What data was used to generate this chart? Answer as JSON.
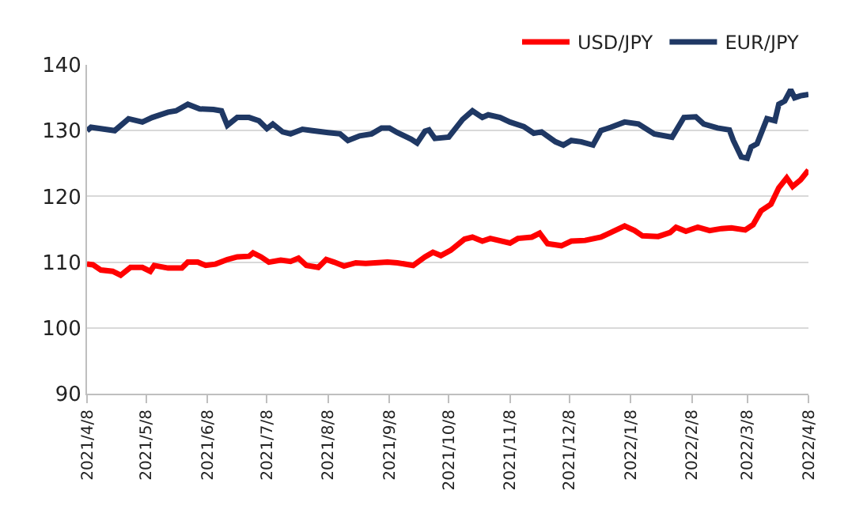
{
  "chart_data": {
    "type": "line",
    "ylim": [
      90,
      140
    ],
    "yticks": [
      90,
      100,
      110,
      120,
      130,
      140
    ],
    "xlim": [
      "2021-04-08",
      "2022-04-08"
    ],
    "xticks": [
      {
        "value": "2021-04-08",
        "label": "2021/4/8"
      },
      {
        "value": "2021-05-08",
        "label": "2021/5/8"
      },
      {
        "value": "2021-06-08",
        "label": "2021/6/8"
      },
      {
        "value": "2021-07-08",
        "label": "2021/7/8"
      },
      {
        "value": "2021-08-08",
        "label": "2021/8/8"
      },
      {
        "value": "2021-09-08",
        "label": "2021/9/8"
      },
      {
        "value": "2021-10-08",
        "label": "2021/10/8"
      },
      {
        "value": "2021-11-08",
        "label": "2021/11/8"
      },
      {
        "value": "2021-12-08",
        "label": "2021/12/8"
      },
      {
        "value": "2022-01-08",
        "label": "2022/1/8"
      },
      {
        "value": "2022-02-08",
        "label": "2022/2/8"
      },
      {
        "value": "2022-03-08",
        "label": "2022/3/8"
      },
      {
        "value": "2022-04-08",
        "label": "2022/4/8"
      }
    ],
    "grid": "y",
    "legend": "top right",
    "marker": "none",
    "line_style": "solid",
    "series": [
      {
        "name": "USD/JPY",
        "color": "#ff0000",
        "x": [
          "2021-04-08",
          "2021-04-11",
          "2021-04-15",
          "2021-04-21",
          "2021-04-25",
          "2021-04-30",
          "2021-05-06",
          "2021-05-10",
          "2021-05-12",
          "2021-05-19",
          "2021-05-26",
          "2021-05-29",
          "2021-06-03",
          "2021-06-07",
          "2021-06-12",
          "2021-06-18",
          "2021-06-23",
          "2021-06-29",
          "2021-07-01",
          "2021-07-05",
          "2021-07-09",
          "2021-07-15",
          "2021-07-20",
          "2021-07-24",
          "2021-07-28",
          "2021-08-03",
          "2021-08-07",
          "2021-08-11",
          "2021-08-16",
          "2021-08-22",
          "2021-08-27",
          "2021-09-07",
          "2021-09-12",
          "2021-09-20",
          "2021-09-26",
          "2021-09-30",
          "2021-10-04",
          "2021-10-09",
          "2021-10-16",
          "2021-10-20",
          "2021-10-25",
          "2021-10-29",
          "2021-11-08",
          "2021-11-12",
          "2021-11-19",
          "2021-11-23",
          "2021-11-27",
          "2021-12-04",
          "2021-12-09",
          "2021-12-16",
          "2021-12-24",
          "2021-12-29",
          "2022-01-05",
          "2022-01-10",
          "2022-01-14",
          "2022-01-22",
          "2022-01-28",
          "2022-01-31",
          "2022-02-05",
          "2022-02-11",
          "2022-02-17",
          "2022-02-23",
          "2022-02-28",
          "2022-03-07",
          "2022-03-11",
          "2022-03-15",
          "2022-03-20",
          "2022-03-24",
          "2022-03-28",
          "2022-03-31",
          "2022-04-04",
          "2022-04-08"
        ],
        "values": [
          109.7,
          109.6,
          108.8,
          108.6,
          108,
          109.2,
          109.2,
          108.6,
          109.5,
          109.1,
          109.1,
          110,
          110,
          109.5,
          109.7,
          110.4,
          110.8,
          110.9,
          111.4,
          110.8,
          110,
          110.3,
          110.1,
          110.6,
          109.5,
          109.2,
          110.4,
          110,
          109.4,
          109.9,
          109.8,
          110,
          109.9,
          109.5,
          110.8,
          111.5,
          111,
          111.8,
          113.5,
          113.8,
          113.2,
          113.6,
          112.9,
          113.6,
          113.8,
          114.4,
          112.8,
          112.5,
          113.2,
          113.3,
          113.8,
          114.5,
          115.5,
          114.8,
          114,
          113.9,
          114.5,
          115.3,
          114.7,
          115.3,
          114.8,
          115.1,
          115.2,
          114.9,
          115.7,
          117.8,
          118.8,
          121.3,
          122.8,
          121.5,
          122.5,
          124
        ]
      },
      {
        "name": "EUR/JPY",
        "color": "#1f3864",
        "x": [
          "2021-04-08",
          "2021-04-10",
          "2021-04-22",
          "2021-04-29",
          "2021-05-06",
          "2021-05-11",
          "2021-05-19",
          "2021-05-23",
          "2021-05-29",
          "2021-06-04",
          "2021-06-11",
          "2021-06-15",
          "2021-06-18",
          "2021-06-23",
          "2021-06-29",
          "2021-07-04",
          "2021-07-08",
          "2021-07-11",
          "2021-07-16",
          "2021-07-20",
          "2021-07-26",
          "2021-07-31",
          "2021-08-08",
          "2021-08-14",
          "2021-08-18",
          "2021-08-24",
          "2021-08-30",
          "2021-09-04",
          "2021-09-08",
          "2021-09-12",
          "2021-09-19",
          "2021-09-22",
          "2021-09-26",
          "2021-09-28",
          "2021-10-01",
          "2021-10-08",
          "2021-10-15",
          "2021-10-20",
          "2021-10-25",
          "2021-10-28",
          "2021-11-03",
          "2021-11-08",
          "2021-11-15",
          "2021-11-20",
          "2021-11-24",
          "2021-12-01",
          "2021-12-05",
          "2021-12-09",
          "2021-12-14",
          "2021-12-20",
          "2021-12-24",
          "2021-12-29",
          "2022-01-05",
          "2022-01-12",
          "2022-01-20",
          "2022-01-29",
          "2022-02-04",
          "2022-02-10",
          "2022-02-14",
          "2022-02-21",
          "2022-02-27",
          "2022-03-01",
          "2022-03-05",
          "2022-03-08",
          "2022-03-10",
          "2022-03-13",
          "2022-03-18",
          "2022-03-22",
          "2022-03-24",
          "2022-03-27",
          "2022-03-30",
          "2022-04-01",
          "2022-04-04",
          "2022-04-08"
        ],
        "values": [
          130,
          130.5,
          130,
          131.8,
          131.3,
          132,
          132.8,
          133,
          134,
          133.3,
          133.2,
          133,
          130.8,
          132,
          132,
          131.5,
          130.3,
          131,
          129.8,
          129.5,
          130.2,
          130,
          129.7,
          129.5,
          128.5,
          129.2,
          129.5,
          130.4,
          130.4,
          129.7,
          128.7,
          128.1,
          129.9,
          130.1,
          128.8,
          129,
          131.7,
          133,
          132,
          132.4,
          132,
          131.3,
          130.6,
          129.6,
          129.8,
          128.3,
          127.8,
          128.5,
          128.3,
          127.8,
          130,
          130.5,
          131.3,
          131,
          129.5,
          129,
          132,
          132.1,
          131,
          130.4,
          130.1,
          128.5,
          126,
          125.8,
          127.5,
          128,
          131.8,
          131.5,
          134,
          134.5,
          136.2,
          135,
          135.3,
          135.5
        ]
      }
    ]
  }
}
